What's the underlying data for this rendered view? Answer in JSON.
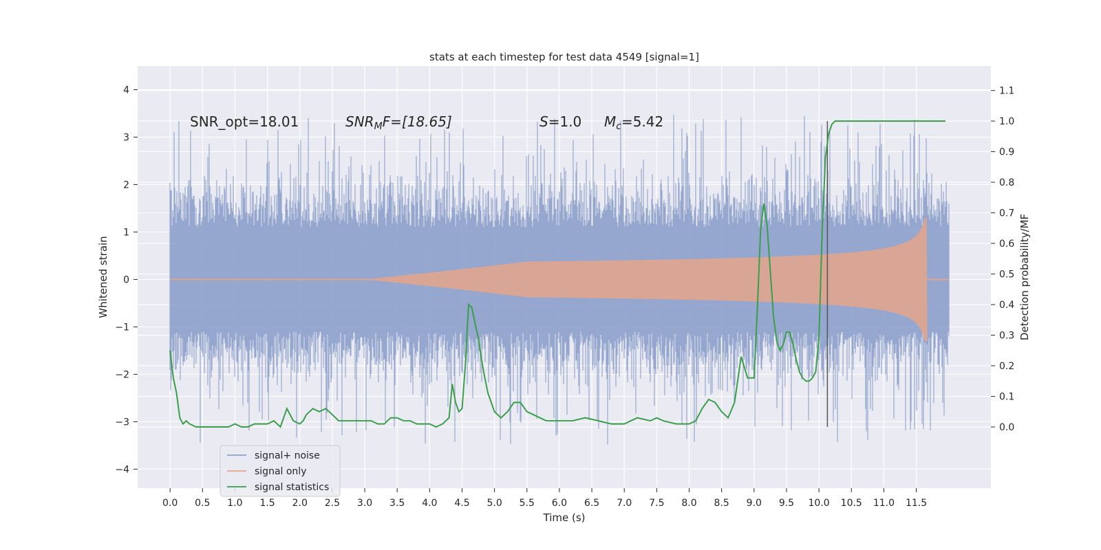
{
  "chart_data": {
    "type": "line",
    "title": "stats at each timestep for test data 4549 [signal=1]",
    "xlabel": "Time (s)",
    "ylabel_left": "Whitened strain",
    "ylabel_right": "Detection probability/MF",
    "xlim": [
      -0.5,
      12.65
    ],
    "ylim_left": [
      -4.4,
      4.5
    ],
    "ylim_right": [
      -0.2,
      1.18
    ],
    "xticks": [
      "0.0",
      "0.5",
      "1.0",
      "1.5",
      "2.0",
      "2.5",
      "3.0",
      "3.5",
      "4.0",
      "4.5",
      "5.0",
      "5.5",
      "6.0",
      "6.5",
      "7.0",
      "7.5",
      "8.0",
      "8.5",
      "9.0",
      "9.5",
      "10.0",
      "10.5",
      "11.0",
      "11.5"
    ],
    "yticks_left": [
      "4",
      "3",
      "2",
      "1",
      "0",
      "−1",
      "−2",
      "−3",
      "−4"
    ],
    "yticks_right": [
      "1.1",
      "1.0",
      "0.9",
      "0.8",
      "0.7",
      "0.6",
      "0.5",
      "0.4",
      "0.3",
      "0.2",
      "0.1",
      "0.0"
    ],
    "grid": true,
    "legend_position": "lower-left",
    "annotations": {
      "snr_opt": "SNR_opt=18.01",
      "snr_mf_name": "SNR",
      "snr_mf_sub": "M",
      "snr_mf_rest": "F=[18.65]",
      "s_name": "S",
      "s_rest": "=1.0",
      "mc_name": "M",
      "mc_sub": "c",
      "mc_rest": "=5.42"
    },
    "merger_line_x": 10.13,
    "series": [
      {
        "name": "signal+ noise",
        "color": "#8da0cb",
        "axis": "left",
        "range": [
          -3.9,
          4.1
        ],
        "t_end": 12.0
      },
      {
        "name": "signal only",
        "color": "#e5a58a",
        "axis": "left",
        "t_end": 11.67
      },
      {
        "name": "signal statistics",
        "color": "#3a9e4a",
        "axis": "right",
        "x": [
          0.0,
          0.05,
          0.1,
          0.15,
          0.2,
          0.25,
          0.3,
          0.4,
          0.5,
          0.6,
          0.7,
          0.8,
          0.9,
          1.0,
          1.1,
          1.2,
          1.3,
          1.4,
          1.5,
          1.6,
          1.7,
          1.8,
          1.85,
          1.9,
          2.0,
          2.05,
          2.1,
          2.2,
          2.3,
          2.4,
          2.5,
          2.6,
          2.7,
          2.8,
          2.9,
          3.0,
          3.1,
          3.2,
          3.3,
          3.4,
          3.5,
          3.6,
          3.7,
          3.8,
          3.9,
          4.0,
          4.1,
          4.2,
          4.3,
          4.35,
          4.4,
          4.45,
          4.5,
          4.55,
          4.6,
          4.65,
          4.7,
          4.75,
          4.8,
          4.85,
          4.9,
          5.0,
          5.1,
          5.2,
          5.3,
          5.4,
          5.5,
          5.6,
          5.7,
          5.8,
          5.9,
          6.0,
          6.2,
          6.4,
          6.6,
          6.8,
          7.0,
          7.2,
          7.4,
          7.5,
          7.6,
          7.8,
          8.0,
          8.1,
          8.2,
          8.3,
          8.4,
          8.5,
          8.6,
          8.7,
          8.8,
          8.9,
          9.0,
          9.05,
          9.1,
          9.15,
          9.2,
          9.25,
          9.3,
          9.35,
          9.4,
          9.45,
          9.5,
          9.55,
          9.6,
          9.65,
          9.7,
          9.75,
          9.8,
          9.85,
          9.9,
          9.95,
          10.0,
          10.05,
          10.1,
          10.15,
          10.2,
          10.25,
          10.3,
          10.4,
          10.5,
          11.0,
          11.5,
          11.95
        ],
        "values": [
          0.25,
          0.16,
          0.11,
          0.03,
          0.01,
          0.02,
          0.01,
          0.0,
          0.0,
          0.0,
          0.0,
          0.0,
          0.0,
          0.01,
          0.0,
          0.0,
          0.01,
          0.01,
          0.01,
          0.02,
          0.0,
          0.06,
          0.04,
          0.02,
          0.01,
          0.02,
          0.04,
          0.06,
          0.05,
          0.06,
          0.04,
          0.02,
          0.02,
          0.02,
          0.02,
          0.02,
          0.02,
          0.01,
          0.01,
          0.03,
          0.03,
          0.02,
          0.02,
          0.01,
          0.01,
          0.01,
          0.0,
          0.01,
          0.03,
          0.14,
          0.08,
          0.05,
          0.06,
          0.2,
          0.4,
          0.39,
          0.34,
          0.29,
          0.22,
          0.16,
          0.11,
          0.05,
          0.03,
          0.05,
          0.08,
          0.08,
          0.05,
          0.04,
          0.03,
          0.02,
          0.02,
          0.02,
          0.02,
          0.03,
          0.02,
          0.01,
          0.01,
          0.03,
          0.02,
          0.03,
          0.02,
          0.01,
          0.01,
          0.02,
          0.06,
          0.09,
          0.08,
          0.05,
          0.03,
          0.08,
          0.23,
          0.16,
          0.16,
          0.38,
          0.64,
          0.73,
          0.66,
          0.51,
          0.36,
          0.28,
          0.25,
          0.27,
          0.31,
          0.31,
          0.27,
          0.22,
          0.18,
          0.16,
          0.15,
          0.15,
          0.16,
          0.18,
          0.29,
          0.64,
          0.88,
          0.96,
          0.99,
          1.0,
          1.0,
          1.0,
          1.0,
          1.0,
          1.0,
          1.0
        ]
      }
    ]
  }
}
